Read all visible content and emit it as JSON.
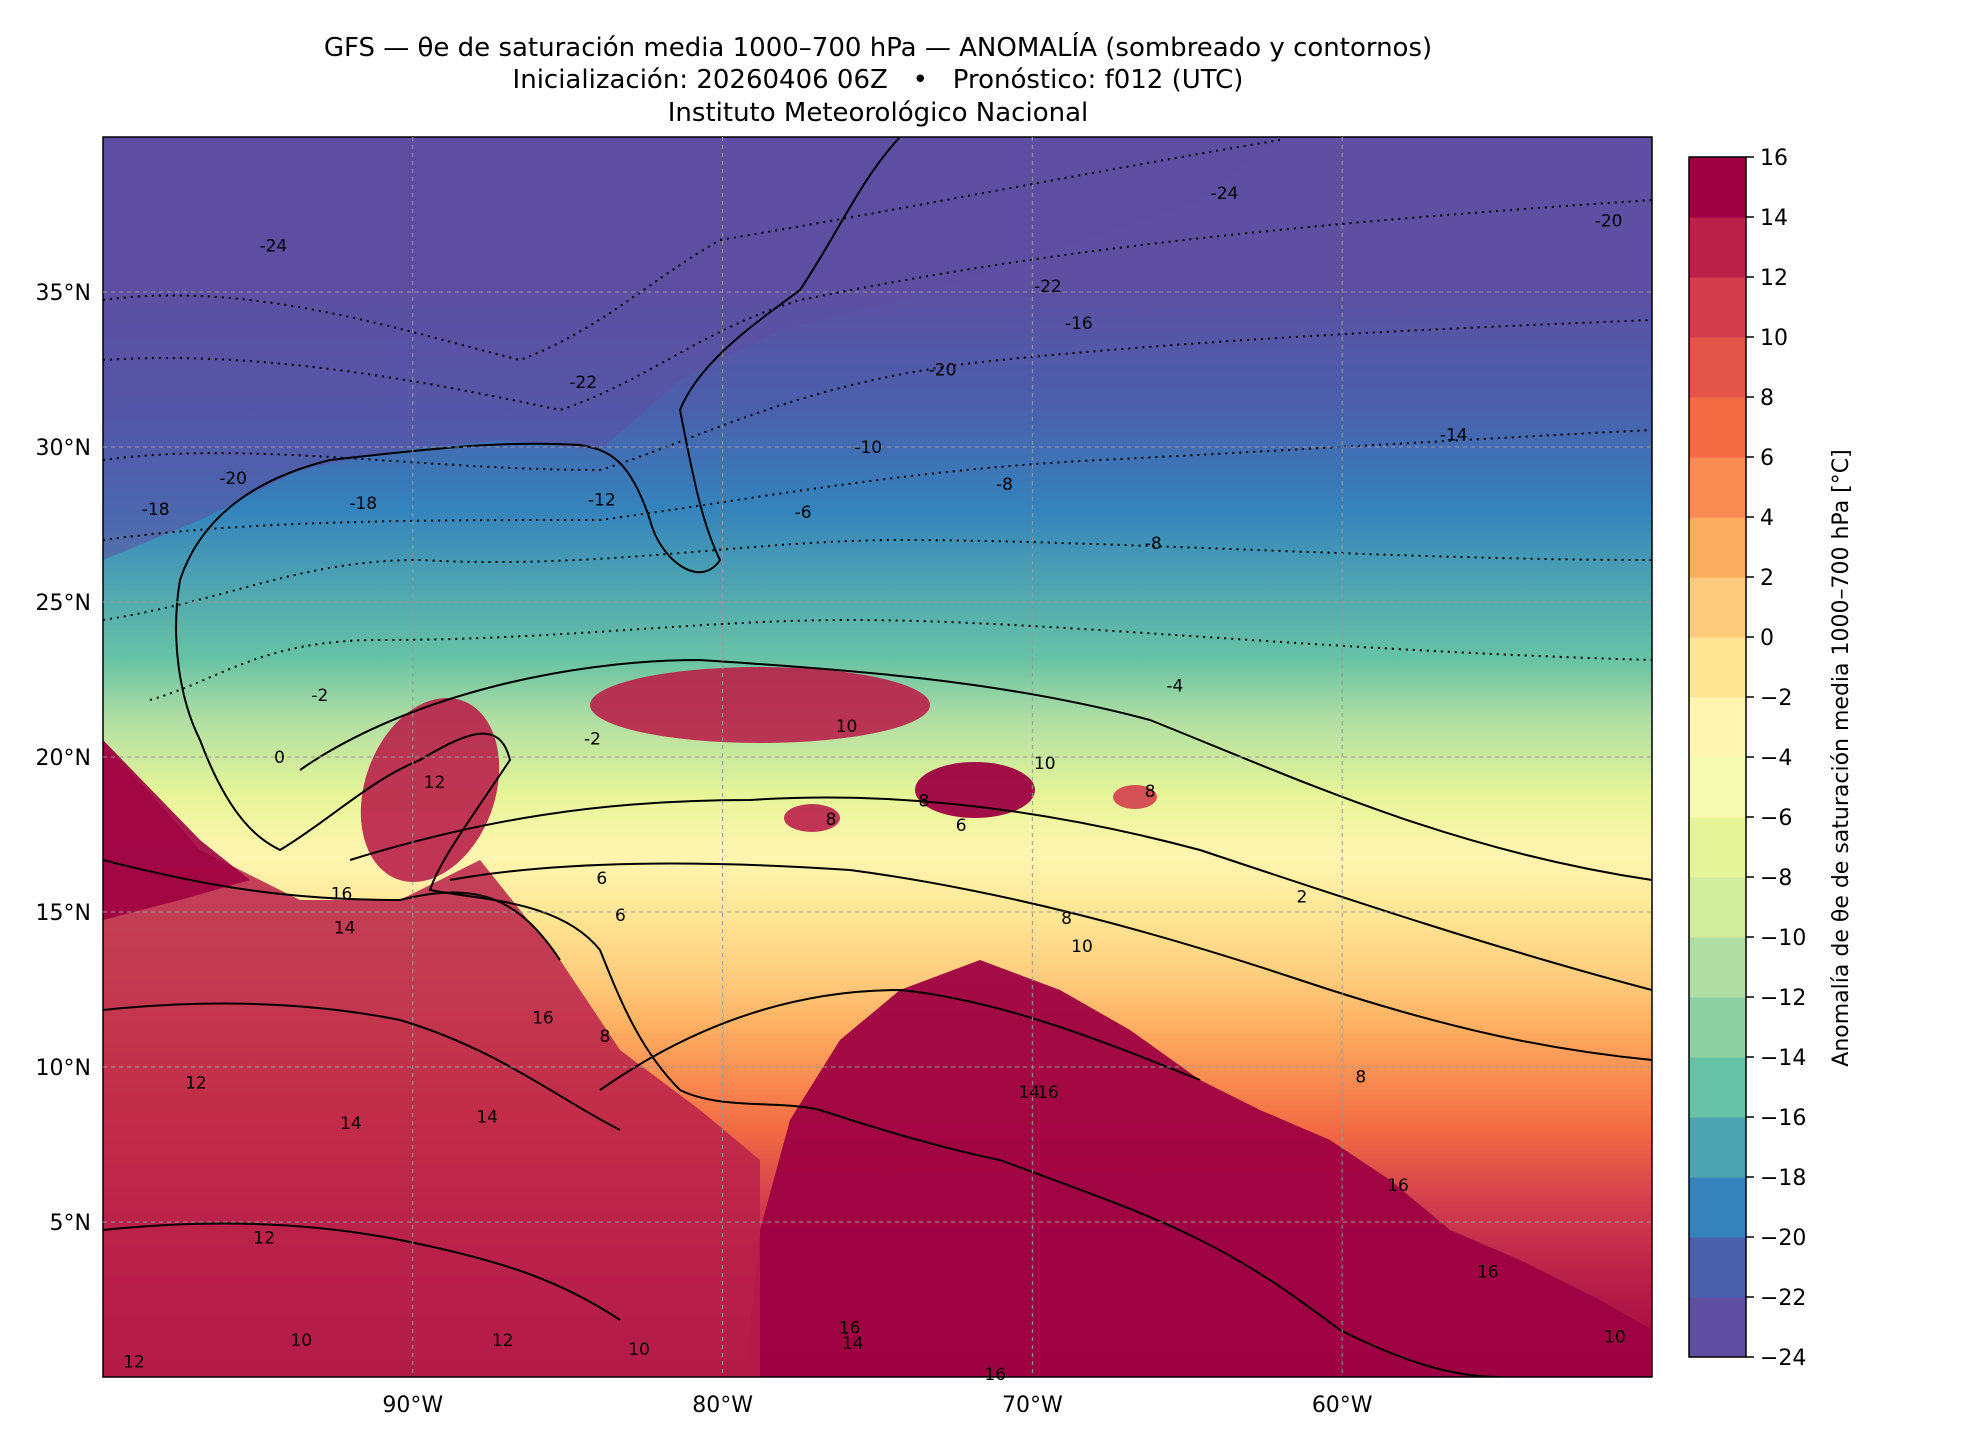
{
  "title": {
    "line1": "GFS — θe de saturación media 1000–700 hPa — ANOMALÍA (sombreado y contornos)",
    "line2": "Inicialización: 20260406 06Z   •   Pronóstico: f012 (UTC)",
    "line3": "Instituto Meteorológico Nacional"
  },
  "map": {
    "extent": {
      "lon_min": -100,
      "lon_max": -50,
      "lat_min": 0,
      "lat_max": 40
    },
    "lon_ticks": [
      {
        "value": -90,
        "label": "90°W"
      },
      {
        "value": -80,
        "label": "80°W"
      },
      {
        "value": -70,
        "label": "70°W"
      },
      {
        "value": -60,
        "label": "60°W"
      }
    ],
    "lat_ticks": [
      {
        "value": 35,
        "label": "35°N"
      },
      {
        "value": 30,
        "label": "30°N"
      },
      {
        "value": 25,
        "label": "25°N"
      },
      {
        "value": 20,
        "label": "20°N"
      },
      {
        "value": 15,
        "label": "15°N"
      },
      {
        "value": 10,
        "label": "10°N"
      },
      {
        "value": 5,
        "label": "5°N"
      }
    ],
    "contour_labels": [
      {
        "text": "-24",
        "lon": -94.5,
        "lat": 36.5
      },
      {
        "text": "-22",
        "lon": -84.5,
        "lat": 32.1
      },
      {
        "text": "-18",
        "lon": -98.3,
        "lat": 28.0
      },
      {
        "text": "-20",
        "lon": -95.8,
        "lat": 29.0
      },
      {
        "text": "-18",
        "lon": -91.6,
        "lat": 28.2
      },
      {
        "text": "-12",
        "lon": -83.9,
        "lat": 28.3
      },
      {
        "text": "-10",
        "lon": -75.3,
        "lat": 30.0
      },
      {
        "text": "-8",
        "lon": -70.9,
        "lat": 28.8
      },
      {
        "text": "-6",
        "lon": -77.4,
        "lat": 27.9
      },
      {
        "text": "-24",
        "lon": -63.8,
        "lat": 38.2
      },
      {
        "text": "-22",
        "lon": -69.5,
        "lat": 35.2
      },
      {
        "text": "-16",
        "lon": -68.5,
        "lat": 34.0
      },
      {
        "text": "-20",
        "lon": -72.9,
        "lat": 32.5
      },
      {
        "text": "-14",
        "lon": -56.4,
        "lat": 30.4
      },
      {
        "text": "-20",
        "lon": -51.4,
        "lat": 37.3
      },
      {
        "text": "-8",
        "lon": -66.1,
        "lat": 26.9
      },
      {
        "text": "-4",
        "lon": -65.4,
        "lat": 22.3
      },
      {
        "text": "-2",
        "lon": -93.0,
        "lat": 22.0
      },
      {
        "text": "0",
        "lon": -94.3,
        "lat": 20.0
      },
      {
        "text": "-2",
        "lon": -84.2,
        "lat": 20.6
      },
      {
        "text": "12",
        "lon": -89.3,
        "lat": 19.2
      },
      {
        "text": "10",
        "lon": -76.0,
        "lat": 21.0
      },
      {
        "text": "10",
        "lon": -69.6,
        "lat": 19.8
      },
      {
        "text": "8",
        "lon": -76.5,
        "lat": 18.0
      },
      {
        "text": "8",
        "lon": -73.5,
        "lat": 18.6
      },
      {
        "text": "6",
        "lon": -72.3,
        "lat": 17.8
      },
      {
        "text": "8",
        "lon": -66.2,
        "lat": 18.9
      },
      {
        "text": "2",
        "lon": -61.3,
        "lat": 15.5
      },
      {
        "text": "6",
        "lon": -83.9,
        "lat": 16.1
      },
      {
        "text": "6",
        "lon": -83.3,
        "lat": 14.9
      },
      {
        "text": "8",
        "lon": -68.9,
        "lat": 14.8
      },
      {
        "text": "10",
        "lon": -68.4,
        "lat": 13.9
      },
      {
        "text": "16",
        "lon": -92.3,
        "lat": 15.6
      },
      {
        "text": "14",
        "lon": -92.2,
        "lat": 14.5
      },
      {
        "text": "16",
        "lon": -85.8,
        "lat": 11.6
      },
      {
        "text": "8",
        "lon": -83.8,
        "lat": 11.0
      },
      {
        "text": "12",
        "lon": -97.0,
        "lat": 9.5
      },
      {
        "text": "14",
        "lon": -92.0,
        "lat": 8.2
      },
      {
        "text": "14",
        "lon": -87.6,
        "lat": 8.4
      },
      {
        "text": "14",
        "lon": -70.1,
        "lat": 9.2
      },
      {
        "text": "16",
        "lon": -69.5,
        "lat": 9.2
      },
      {
        "text": "8",
        "lon": -59.4,
        "lat": 9.7
      },
      {
        "text": "16",
        "lon": -58.2,
        "lat": 6.2
      },
      {
        "text": "16",
        "lon": -55.3,
        "lat": 3.4
      },
      {
        "text": "12",
        "lon": -94.8,
        "lat": 4.5
      },
      {
        "text": "10",
        "lon": -93.6,
        "lat": 1.2
      },
      {
        "text": "12",
        "lon": -87.1,
        "lat": 1.2
      },
      {
        "text": "10",
        "lon": -82.7,
        "lat": 0.9
      },
      {
        "text": "16",
        "lon": -75.9,
        "lat": 1.6
      },
      {
        "text": "14",
        "lon": -75.8,
        "lat": 1.1
      },
      {
        "text": "16",
        "lon": -71.2,
        "lat": 0.1
      },
      {
        "text": "12",
        "lon": -99.0,
        "lat": 0.5
      },
      {
        "text": "10",
        "lon": -51.2,
        "lat": 1.3
      }
    ]
  },
  "colorbar": {
    "label": "Anomalía de θe de saturación media 1000–700 hPa [°C]",
    "levels": [
      -24,
      -22,
      -20,
      -18,
      -16,
      -14,
      -12,
      -10,
      -8,
      -6,
      -4,
      -2,
      0,
      2,
      4,
      6,
      8,
      10,
      12,
      14,
      16
    ],
    "tick_labels": [
      "−24",
      "−22",
      "−20",
      "−18",
      "−16",
      "−14",
      "−12",
      "−10",
      "−8",
      "−6",
      "−4",
      "−2",
      "0",
      "2",
      "4",
      "6",
      "8",
      "10",
      "12",
      "14",
      "16"
    ],
    "colors": [
      "#5e4fa2",
      "#4a60ad",
      "#3483bd",
      "#4da4b1",
      "#66c2a5",
      "#8ed0a4",
      "#b0dea3",
      "#d1ec9c",
      "#e6f598",
      "#f5fab2",
      "#fff5b0",
      "#fee593",
      "#fdcb7b",
      "#fdad60",
      "#f88b51",
      "#f26b43",
      "#e35549",
      "#d23e4e",
      "#b9204a",
      "#9e0142"
    ]
  }
}
